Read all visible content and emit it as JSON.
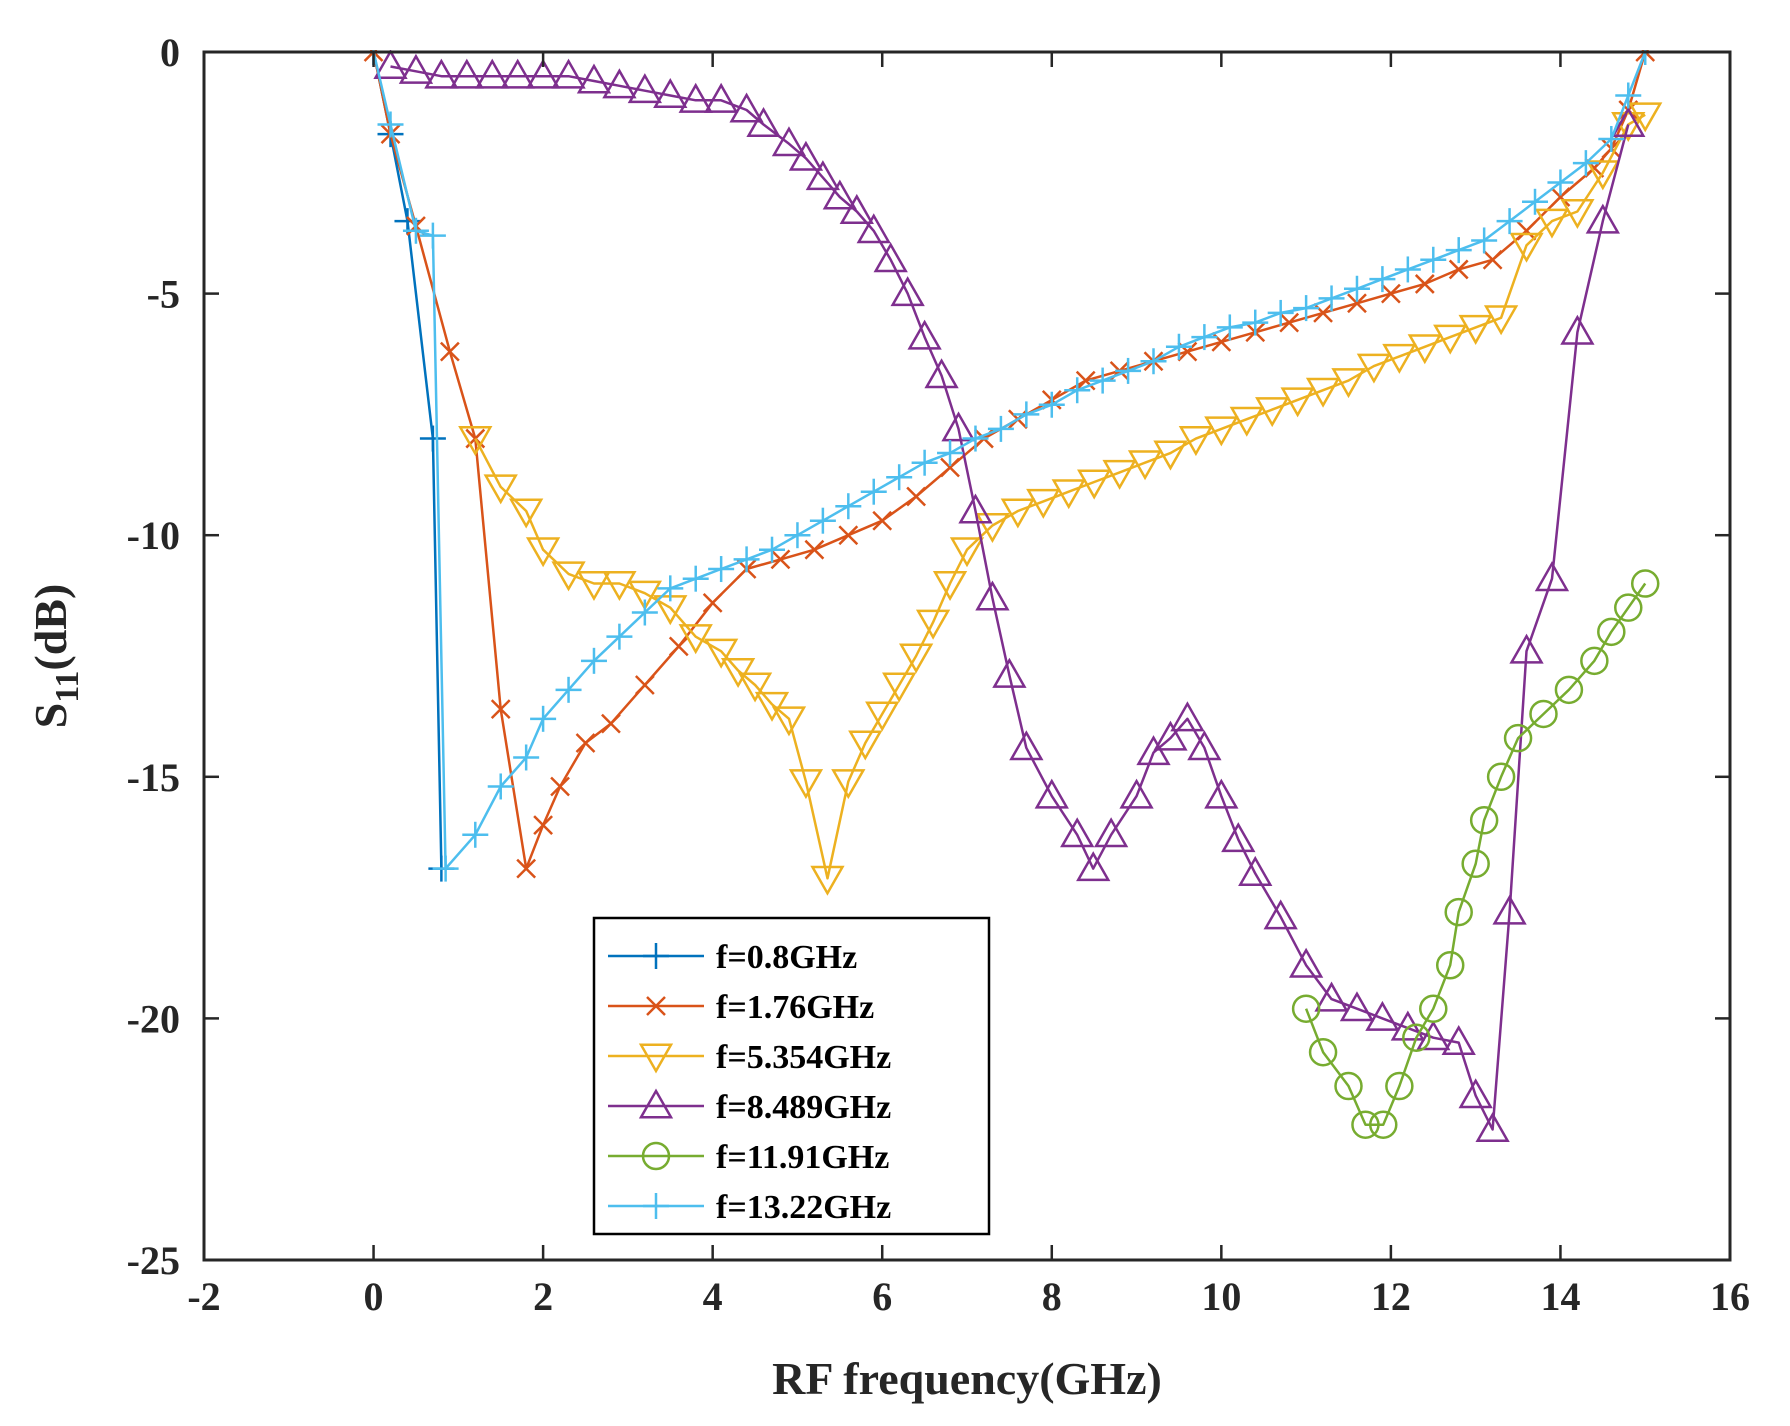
{
  "chart_data": {
    "type": "line",
    "title": "",
    "xlabel": "RF frequency(GHz)",
    "ylabel": {
      "main": "S",
      "subscript": "11",
      "suffix": "(dB)"
    },
    "xlim": [
      -2,
      16
    ],
    "ylim": [
      -25,
      0
    ],
    "xticks": [
      -2,
      0,
      2,
      4,
      6,
      8,
      10,
      12,
      14,
      16
    ],
    "yticks": [
      0,
      -5,
      -10,
      -15,
      -20,
      -25
    ],
    "grid": false,
    "legend_position": "bottom-center",
    "series": [
      {
        "name": "f=0.8GHz",
        "color": "#0072BD",
        "marker": "plus",
        "x": [
          0.0,
          0.2,
          0.4,
          0.7,
          0.8
        ],
        "y": [
          0.0,
          -1.7,
          -3.5,
          -8.0,
          -16.9
        ]
      },
      {
        "name": "f=1.76GHz",
        "color": "#D95319",
        "marker": "x",
        "x": [
          0.0,
          0.2,
          0.5,
          0.9,
          1.2,
          1.5,
          1.8,
          2.0,
          2.2,
          2.5,
          2.8,
          3.2,
          3.6,
          4.0,
          4.4,
          4.8,
          5.2,
          5.6,
          6.0,
          6.4,
          6.8,
          7.2,
          7.6,
          8.0,
          8.4,
          8.8,
          9.2,
          9.6,
          10.0,
          10.4,
          10.8,
          11.2,
          11.6,
          12.0,
          12.4,
          12.8,
          13.2,
          13.6,
          14.0,
          14.4,
          14.6,
          14.8,
          15.0
        ],
        "y": [
          0.0,
          -1.7,
          -3.6,
          -6.2,
          -8.0,
          -13.6,
          -16.9,
          -16.0,
          -15.2,
          -14.3,
          -13.9,
          -13.1,
          -12.3,
          -11.4,
          -10.7,
          -10.5,
          -10.3,
          -10.0,
          -9.7,
          -9.2,
          -8.6,
          -8.0,
          -7.6,
          -7.2,
          -6.8,
          -6.6,
          -6.4,
          -6.2,
          -6.0,
          -5.8,
          -5.6,
          -5.4,
          -5.2,
          -5.0,
          -4.8,
          -4.5,
          -4.3,
          -3.7,
          -3.0,
          -2.4,
          -2.0,
          -1.2,
          0.0
        ]
      },
      {
        "name": "f=5.354GHz",
        "color": "#EDB120",
        "marker": "triangle-down",
        "x": [
          1.2,
          1.5,
          1.8,
          2.0,
          2.3,
          2.6,
          2.9,
          3.2,
          3.5,
          3.8,
          4.1,
          4.3,
          4.5,
          4.7,
          4.9,
          5.1,
          5.354,
          5.6,
          5.8,
          6.0,
          6.2,
          6.4,
          6.6,
          6.8,
          7.0,
          7.3,
          7.6,
          7.9,
          8.2,
          8.5,
          8.8,
          9.1,
          9.4,
          9.7,
          10.0,
          10.3,
          10.6,
          10.9,
          11.2,
          11.5,
          11.8,
          12.1,
          12.4,
          12.7,
          13.0,
          13.3,
          13.6,
          13.9,
          14.2,
          14.5,
          14.8,
          15.0
        ],
        "y": [
          -8.0,
          -9.0,
          -9.5,
          -10.3,
          -10.8,
          -11.0,
          -11.0,
          -11.2,
          -11.5,
          -12.1,
          -12.4,
          -12.8,
          -13.1,
          -13.5,
          -13.8,
          -15.1,
          -17.1,
          -15.1,
          -14.3,
          -13.7,
          -13.1,
          -12.5,
          -11.8,
          -11.0,
          -10.3,
          -9.8,
          -9.5,
          -9.3,
          -9.1,
          -8.9,
          -8.7,
          -8.5,
          -8.3,
          -8.0,
          -7.8,
          -7.6,
          -7.4,
          -7.2,
          -7.0,
          -6.8,
          -6.5,
          -6.3,
          -6.1,
          -5.9,
          -5.7,
          -5.5,
          -4.0,
          -3.5,
          -3.3,
          -2.5,
          -1.5,
          -1.3
        ]
      },
      {
        "name": "f=8.489GHz",
        "color": "#7E2F8E",
        "marker": "triangle-up",
        "x": [
          0.2,
          0.5,
          0.8,
          1.1,
          1.4,
          1.7,
          2.0,
          2.3,
          2.6,
          2.9,
          3.2,
          3.5,
          3.8,
          4.1,
          4.4,
          4.6,
          4.9,
          5.1,
          5.3,
          5.5,
          5.7,
          5.9,
          6.1,
          6.3,
          6.5,
          6.7,
          6.9,
          7.1,
          7.3,
          7.5,
          7.7,
          8.0,
          8.3,
          8.489,
          8.7,
          9.0,
          9.2,
          9.4,
          9.6,
          9.8,
          10.0,
          10.2,
          10.4,
          10.7,
          11.0,
          11.3,
          11.6,
          11.9,
          12.2,
          12.5,
          12.8,
          13.0,
          13.2,
          13.4,
          13.6,
          13.9,
          14.2,
          14.5,
          14.8
        ],
        "y": [
          -0.3,
          -0.4,
          -0.5,
          -0.5,
          -0.5,
          -0.5,
          -0.5,
          -0.5,
          -0.6,
          -0.7,
          -0.8,
          -0.9,
          -1.0,
          -1.0,
          -1.2,
          -1.5,
          -1.9,
          -2.2,
          -2.6,
          -3.0,
          -3.3,
          -3.7,
          -4.3,
          -5.0,
          -5.9,
          -6.7,
          -7.8,
          -9.5,
          -11.3,
          -12.9,
          -14.4,
          -15.4,
          -16.2,
          -16.9,
          -16.2,
          -15.4,
          -14.5,
          -14.2,
          -13.8,
          -14.4,
          -15.4,
          -16.3,
          -17.0,
          -17.9,
          -18.9,
          -19.6,
          -19.8,
          -20.0,
          -20.2,
          -20.4,
          -20.5,
          -21.6,
          -22.3,
          -17.8,
          -12.4,
          -10.9,
          -5.8,
          -3.5,
          -1.5
        ]
      },
      {
        "name": "f=11.91GHz",
        "color": "#77AC30",
        "marker": "circle",
        "x": [
          11.0,
          11.2,
          11.5,
          11.7,
          11.91,
          12.1,
          12.3,
          12.5,
          12.7,
          12.8,
          13.0,
          13.1,
          13.3,
          13.5,
          13.8,
          14.1,
          14.4,
          14.6,
          14.8,
          15.0
        ],
        "y": [
          -19.8,
          -20.7,
          -21.4,
          -22.2,
          -22.2,
          -21.4,
          -20.4,
          -19.8,
          -18.9,
          -17.8,
          -16.8,
          -15.9,
          -15.0,
          -14.2,
          -13.7,
          -13.2,
          -12.6,
          -12.0,
          -11.5,
          -11.0
        ]
      },
      {
        "name": "f=13.22GHz",
        "color": "#4DBEEE",
        "marker": "plus",
        "x": [
          0.0,
          0.2,
          0.5,
          0.7,
          0.85,
          1.2,
          1.5,
          1.8,
          2.0,
          2.3,
          2.6,
          2.9,
          3.2,
          3.5,
          3.8,
          4.1,
          4.4,
          4.7,
          5.0,
          5.3,
          5.6,
          5.9,
          6.2,
          6.5,
          6.8,
          7.1,
          7.4,
          7.7,
          8.0,
          8.3,
          8.6,
          8.9,
          9.2,
          9.5,
          9.8,
          10.1,
          10.4,
          10.7,
          11.0,
          11.3,
          11.6,
          11.9,
          12.2,
          12.5,
          12.8,
          13.1,
          13.4,
          13.7,
          14.0,
          14.3,
          14.6,
          14.8,
          15.0
        ],
        "y": [
          0.0,
          -1.5,
          -3.7,
          -3.8,
          -16.9,
          -16.2,
          -15.2,
          -14.6,
          -13.8,
          -13.2,
          -12.6,
          -12.1,
          -11.6,
          -11.1,
          -10.9,
          -10.7,
          -10.5,
          -10.3,
          -10.0,
          -9.7,
          -9.4,
          -9.1,
          -8.8,
          -8.5,
          -8.3,
          -8.0,
          -7.8,
          -7.5,
          -7.3,
          -7.0,
          -6.8,
          -6.6,
          -6.4,
          -6.1,
          -5.9,
          -5.7,
          -5.6,
          -5.4,
          -5.3,
          -5.1,
          -4.9,
          -4.7,
          -4.5,
          -4.3,
          -4.1,
          -3.9,
          -3.5,
          -3.1,
          -2.7,
          -2.3,
          -1.8,
          -0.9,
          0.0
        ]
      }
    ]
  }
}
